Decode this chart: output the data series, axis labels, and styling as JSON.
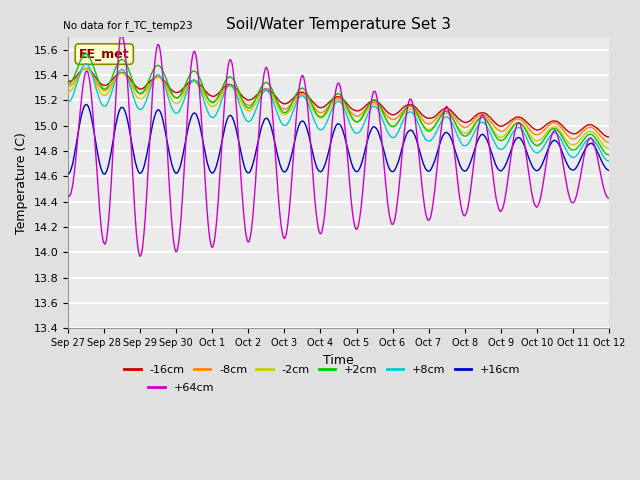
{
  "title": "Soil/Water Temperature Set 3",
  "xlabel": "Time",
  "ylabel": "Temperature (C)",
  "no_data_text": "No data for f_TC_temp23",
  "legend_label_text": "EE_met",
  "ylim": [
    13.4,
    15.7
  ],
  "yticks": [
    13.4,
    13.6,
    13.8,
    14.0,
    14.2,
    14.4,
    14.6,
    14.8,
    15.0,
    15.2,
    15.4,
    15.6
  ],
  "xtick_labels": [
    "Sep 27",
    "Sep 28",
    "Sep 29",
    "Sep 30",
    "Oct 1",
    "Oct 2",
    "Oct 3",
    "Oct 4",
    "Oct 5",
    "Oct 6",
    "Oct 7",
    "Oct 8",
    "Oct 9",
    "Oct 10",
    "Oct 11",
    "Oct 12"
  ],
  "series_colors": [
    "#cc0000",
    "#ff8800",
    "#cccc00",
    "#00cc00",
    "#00cccc",
    "#0000cc",
    "#cc00cc"
  ],
  "series_labels": [
    "-16cm",
    "-8cm",
    "-2cm",
    "+2cm",
    "+8cm",
    "+16cm",
    "+64cm"
  ],
  "background_color": "#e0e0e0",
  "plot_bg_color": "#ebebeb",
  "grid_color": "#ffffff",
  "n_points": 1440,
  "figsize": [
    6.4,
    4.8
  ],
  "dpi": 100
}
